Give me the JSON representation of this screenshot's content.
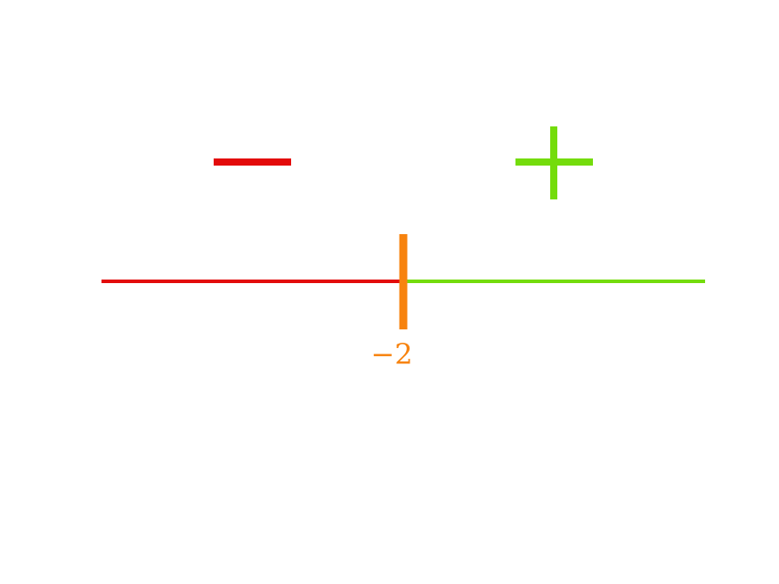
{
  "colors": {
    "negative": "#e30b0b",
    "positive": "#74dc0c",
    "boundary": "#f7830f",
    "background": "#ffffff"
  },
  "sign_chart": {
    "critical_point": {
      "value": -2,
      "label": "−2"
    },
    "intervals": [
      {
        "name": "left-of-critical",
        "sign": "negative",
        "sign_glyph": "minus-sign-icon"
      },
      {
        "name": "right-of-critical",
        "sign": "positive",
        "sign_glyph": "plus-sign-icon"
      }
    ]
  }
}
